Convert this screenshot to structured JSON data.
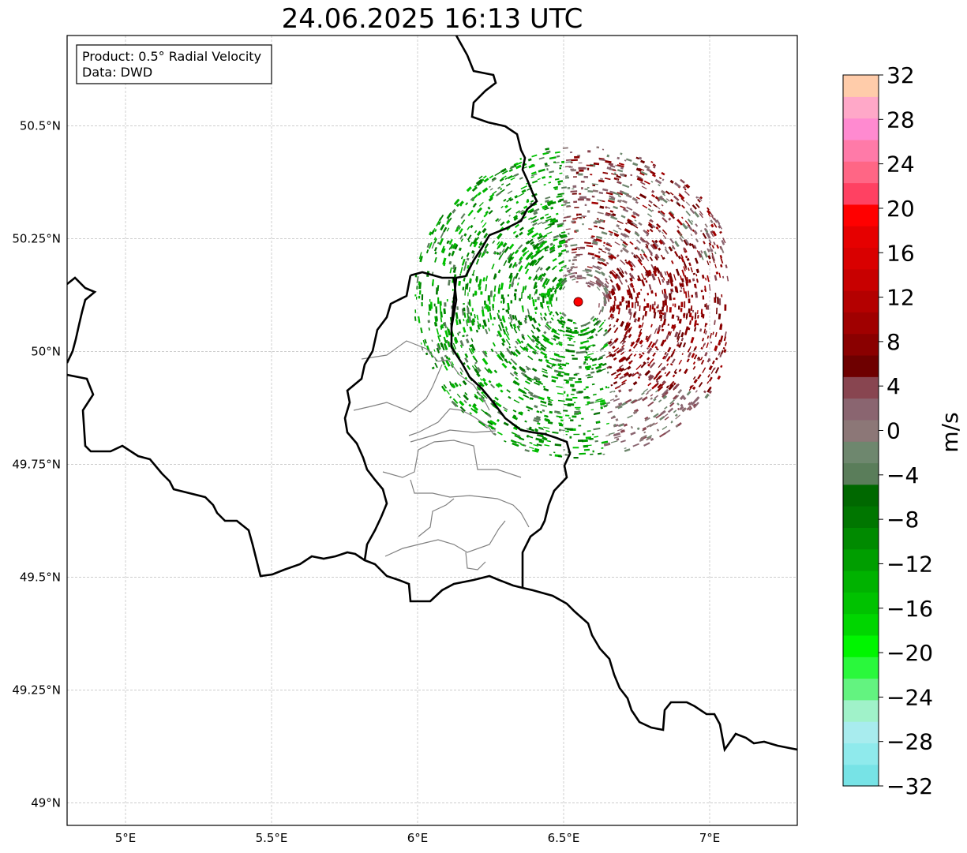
{
  "title": "24.06.2025 16:13 UTC",
  "info_box": {
    "product": "Product: 0.5° Radial Velocity",
    "data": "Data: DWD"
  },
  "map": {
    "lon_range": [
      4.8,
      7.3
    ],
    "lat_range": [
      48.95,
      50.7
    ],
    "x_ticks": [
      {
        "value": 5.0,
        "label": "5°E"
      },
      {
        "value": 5.5,
        "label": "5.5°E"
      },
      {
        "value": 6.0,
        "label": "6°E"
      },
      {
        "value": 6.5,
        "label": "6.5°E"
      },
      {
        "value": 7.0,
        "label": "7°E"
      }
    ],
    "y_ticks": [
      {
        "value": 50.5,
        "label": "50.5°N"
      },
      {
        "value": 50.25,
        "label": "50.25°N"
      },
      {
        "value": 50.0,
        "label": "50°N"
      },
      {
        "value": 49.75,
        "label": "49.75°N"
      },
      {
        "value": 49.5,
        "label": "49.5°N"
      },
      {
        "value": 49.25,
        "label": "49.25°N"
      },
      {
        "value": 49.0,
        "label": "49°N"
      }
    ],
    "grid": true,
    "radar_site": {
      "lon": 6.55,
      "lat": 50.11,
      "color": "#ff0000"
    }
  },
  "colorbar": {
    "label": "m/s",
    "range": [
      -32,
      32
    ],
    "step": 2,
    "tick_labels": [
      "32",
      "28",
      "24",
      "20",
      "16",
      "12",
      "8",
      "4",
      "0",
      "−4",
      "−8",
      "−12",
      "−16",
      "−20",
      "−24",
      "−28",
      "−32"
    ],
    "colors": [
      "#77e3e6",
      "#8feaec",
      "#a8ecee",
      "#a0f2c9",
      "#63f380",
      "#2af83c",
      "#00f500",
      "#00d600",
      "#00c200",
      "#00b200",
      "#009e00",
      "#008a00",
      "#007600",
      "#006800",
      "#5a7d5a",
      "#6e876e",
      "#8c7777",
      "#8a6570",
      "#884550",
      "#6e0000",
      "#8a0000",
      "#a00000",
      "#b40000",
      "#c80000",
      "#d90000",
      "#e60000",
      "#ff0000",
      "#ff4162",
      "#ff6685",
      "#ff7aa8",
      "#ff8ad0",
      "#ffa8c8",
      "#ffccaa"
    ]
  }
}
